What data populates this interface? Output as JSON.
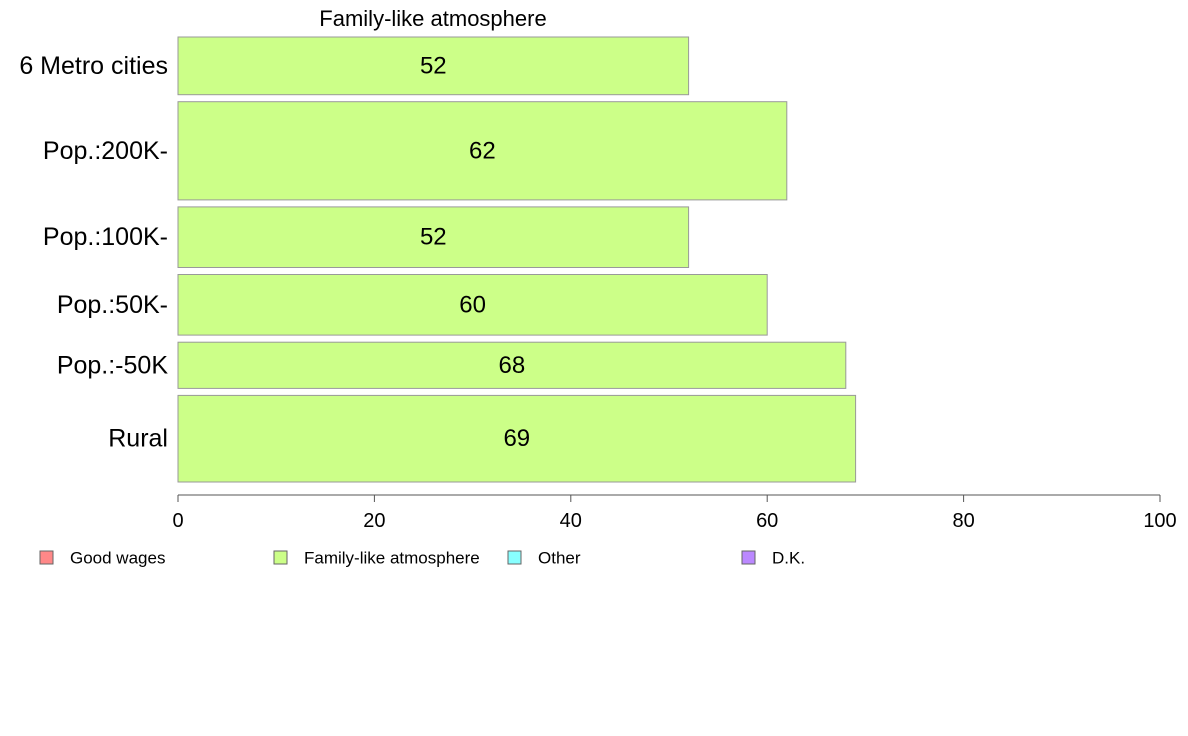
{
  "chart_data": {
    "type": "bar",
    "orientation": "horizontal",
    "title": "Family-like atmosphere",
    "categories": [
      "6 Metro cities",
      "Pop.:200K-",
      "Pop.:100K-",
      "Pop.:50K-",
      "Pop.:-50K",
      "Rural"
    ],
    "values": [
      52,
      62,
      52,
      60,
      68,
      69
    ],
    "value_labels": [
      "52",
      "62",
      "52",
      "60",
      "68",
      "69"
    ],
    "bar_weights": [
      1.0,
      1.7,
      1.05,
      1.05,
      0.8,
      1.5
    ],
    "bar_color": "#ccff88",
    "bar_stroke": "#999999",
    "xlim": [
      0,
      100
    ],
    "xticks": [
      0,
      20,
      40,
      60,
      80,
      100
    ],
    "xtick_labels": [
      "0",
      "20",
      "40",
      "60",
      "80",
      "100"
    ],
    "grid": false,
    "legend_position": "bottom",
    "legend": [
      {
        "label": "Good wages",
        "color": "#ff8888"
      },
      {
        "label": "Family-like atmosphere",
        "color": "#ccff88"
      },
      {
        "label": "Other",
        "color": "#88ffff"
      },
      {
        "label": "D.K.",
        "color": "#bb88ff"
      }
    ]
  }
}
